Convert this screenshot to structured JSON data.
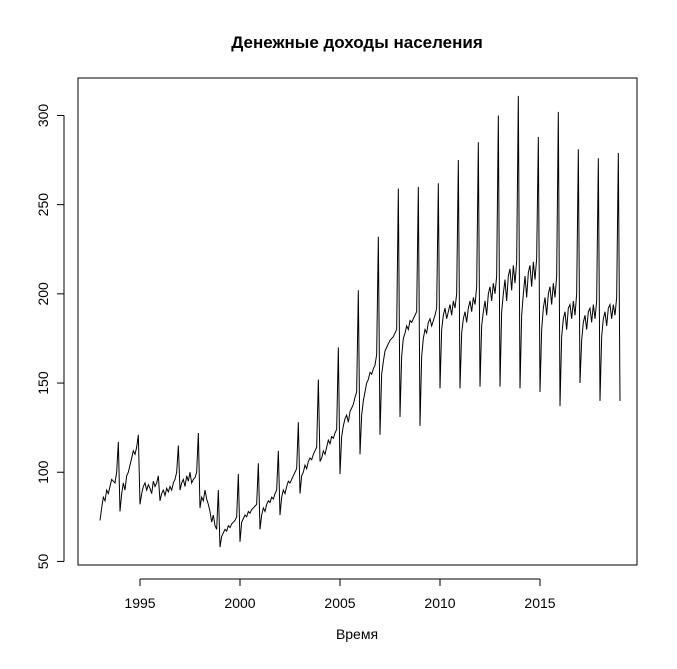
{
  "chart_data": {
    "type": "line",
    "title": "Денежные доходы населения",
    "xlabel": "Время",
    "ylabel": "",
    "start": 1993,
    "frequency": 12,
    "xlim": [
      1991.9,
      2019.85
    ],
    "ylim": [
      48,
      321
    ],
    "xticks": [
      1995,
      2000,
      2005,
      2010,
      2015
    ],
    "yticks": [
      50,
      100,
      150,
      200,
      250,
      300
    ],
    "grid": false,
    "line_color": "#000000",
    "values": [
      73,
      80,
      86,
      84,
      90,
      88,
      92,
      96,
      95,
      94,
      100,
      117,
      78,
      88,
      94,
      90,
      98,
      100,
      104,
      108,
      112,
      110,
      114,
      121,
      82,
      88,
      92,
      94,
      90,
      93,
      91,
      88,
      95,
      92,
      94,
      98,
      84,
      88,
      90,
      87,
      91,
      89,
      92,
      90,
      94,
      96,
      100,
      115,
      90,
      94,
      96,
      92,
      98,
      95,
      100,
      94,
      96,
      97,
      100,
      122,
      80,
      86,
      84,
      90,
      85,
      82,
      78,
      72,
      76,
      70,
      68,
      90,
      58,
      64,
      66,
      68,
      67,
      70,
      69,
      71,
      72,
      73,
      75,
      99,
      61,
      72,
      74,
      76,
      75,
      78,
      77,
      79,
      80,
      81,
      82,
      105,
      68,
      76,
      80,
      78,
      82,
      84,
      83,
      86,
      85,
      88,
      90,
      112,
      76,
      86,
      90,
      88,
      92,
      95,
      94,
      96,
      98,
      100,
      102,
      128,
      88,
      98,
      100,
      104,
      102,
      106,
      108,
      107,
      110,
      112,
      114,
      152,
      106,
      108,
      112,
      110,
      114,
      118,
      116,
      120,
      119,
      122,
      124,
      170,
      99,
      120,
      126,
      130,
      132,
      128,
      134,
      136,
      138,
      142,
      145,
      202,
      110,
      132,
      140,
      145,
      150,
      152,
      156,
      155,
      158,
      160,
      166,
      232,
      121,
      155,
      162,
      168,
      170,
      172,
      174,
      175,
      176,
      178,
      180,
      259,
      131,
      165,
      175,
      178,
      182,
      180,
      185,
      184,
      186,
      188,
      190,
      260,
      126,
      165,
      175,
      180,
      178,
      184,
      186,
      182,
      185,
      188,
      192,
      262,
      147,
      180,
      188,
      192,
      186,
      190,
      194,
      188,
      196,
      192,
      200,
      275,
      147,
      178,
      186,
      190,
      184,
      192,
      196,
      190,
      198,
      194,
      204,
      285,
      148,
      182,
      190,
      196,
      188,
      200,
      204,
      196,
      206,
      200,
      210,
      300,
      148,
      190,
      200,
      208,
      196,
      210,
      214,
      202,
      216,
      206,
      218,
      311,
      147,
      188,
      200,
      210,
      198,
      212,
      216,
      204,
      218,
      208,
      220,
      288,
      145,
      180,
      192,
      198,
      188,
      200,
      204,
      194,
      206,
      198,
      210,
      302,
      137,
      176,
      186,
      190,
      180,
      192,
      194,
      186,
      196,
      188,
      200,
      281,
      150,
      174,
      184,
      188,
      180,
      190,
      192,
      184,
      194,
      186,
      196,
      276,
      140,
      176,
      186,
      190,
      182,
      192,
      194,
      186,
      194,
      188,
      198,
      279,
      140
    ]
  }
}
